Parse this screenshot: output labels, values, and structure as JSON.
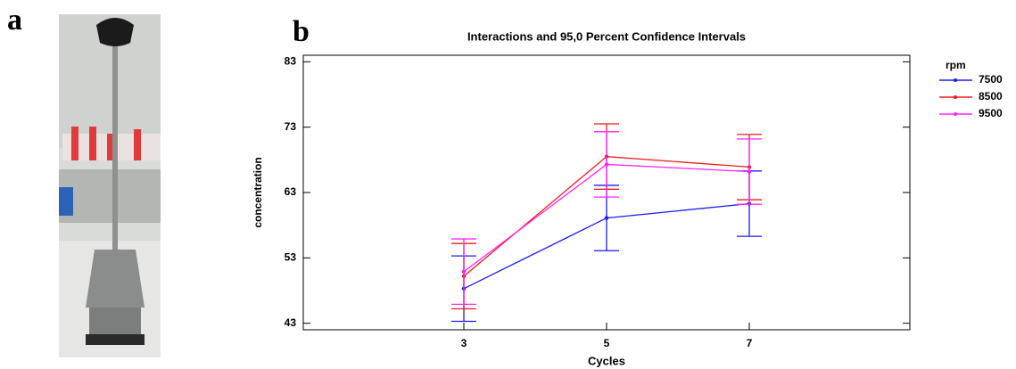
{
  "panel_labels": [
    "a",
    "b"
  ],
  "chart_data": {
    "type": "line",
    "title": "Interactions and 95,0 Percent Confidence Intervals",
    "x_label": "Cycles",
    "y_label": "concentration",
    "x": [
      3,
      5,
      7
    ],
    "xlim": [
      0.75,
      9.25
    ],
    "xticks": [
      3,
      5,
      7
    ],
    "ylim": [
      42,
      84
    ],
    "yticks": [
      43,
      53,
      63,
      73,
      83
    ],
    "legend_title": "rpm",
    "legend": "right",
    "series": [
      {
        "name": "7500",
        "color": "#1a1aff",
        "values": [
          48.3,
          59.1,
          61.3
        ],
        "errors": [
          5,
          5,
          5
        ]
      },
      {
        "name": "8500",
        "color": "#ee1c1c",
        "values": [
          50.2,
          68.5,
          66.9
        ],
        "errors": [
          5,
          5,
          5
        ]
      },
      {
        "name": "9500",
        "color": "#ff22ff",
        "values": [
          50.9,
          67.3,
          66.2
        ],
        "errors": [
          5,
          5,
          5
        ]
      }
    ]
  }
}
